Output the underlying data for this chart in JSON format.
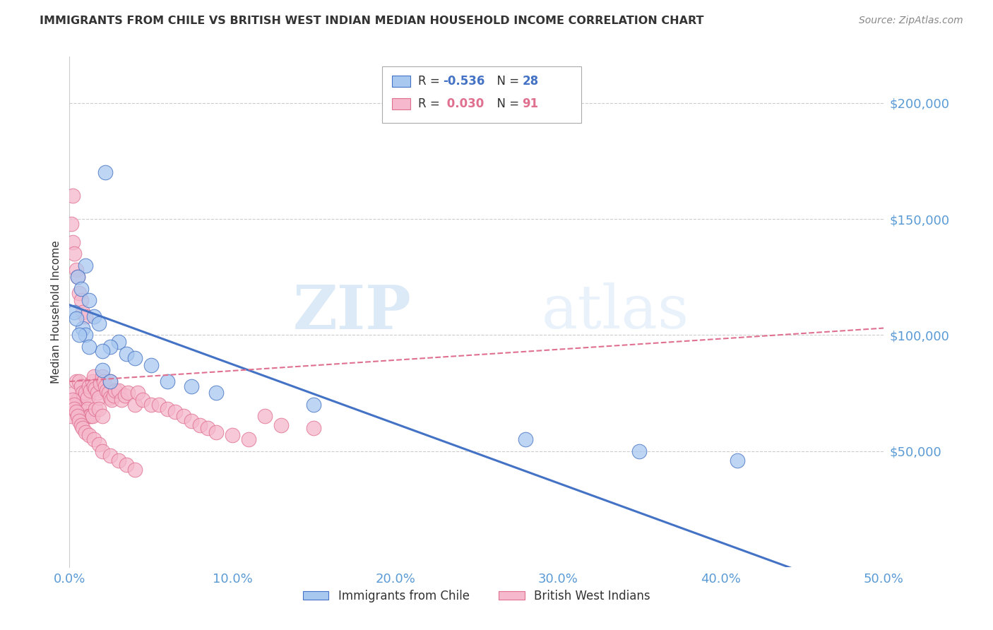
{
  "title": "IMMIGRANTS FROM CHILE VS BRITISH WEST INDIAN MEDIAN HOUSEHOLD INCOME CORRELATION CHART",
  "source": "Source: ZipAtlas.com",
  "ylabel": "Median Household Income",
  "xlabel_ticks": [
    "0.0%",
    "10.0%",
    "20.0%",
    "30.0%",
    "40.0%",
    "50.0%"
  ],
  "xlabel_vals": [
    0.0,
    0.1,
    0.2,
    0.3,
    0.4,
    0.5
  ],
  "ylim": [
    0,
    220000
  ],
  "xlim": [
    0.0,
    0.5
  ],
  "ytick_vals": [
    50000,
    100000,
    150000,
    200000
  ],
  "ytick_labels": [
    "$50,000",
    "$100,000",
    "$150,000",
    "$200,000"
  ],
  "watermark_zip": "ZIP",
  "watermark_atlas": "atlas",
  "legend_chile_R": "-0.536",
  "legend_chile_N": "28",
  "legend_bwi_R": "0.030",
  "legend_bwi_N": "91",
  "chile_fill_color": "#a8c8f0",
  "bwi_fill_color": "#f5b8cc",
  "chile_edge_color": "#4472c4",
  "bwi_edge_color": "#e07090",
  "chile_line_color": "#4472c4",
  "bwi_line_color": "#e07090",
  "grid_color": "#cccccc",
  "title_color": "#333333",
  "axis_label_color": "#5b9bd5",
  "ylabel_color": "#333333",
  "chile_scatter_x": [
    0.022,
    0.01,
    0.005,
    0.007,
    0.012,
    0.015,
    0.018,
    0.008,
    0.01,
    0.03,
    0.025,
    0.02,
    0.035,
    0.04,
    0.05,
    0.06,
    0.075,
    0.09,
    0.15,
    0.28,
    0.35,
    0.003,
    0.004,
    0.006,
    0.012,
    0.02,
    0.025,
    0.41
  ],
  "chile_scatter_y": [
    170000,
    130000,
    125000,
    120000,
    115000,
    108000,
    105000,
    103000,
    100000,
    97000,
    95000,
    93000,
    92000,
    90000,
    87000,
    80000,
    78000,
    75000,
    70000,
    55000,
    50000,
    110000,
    107000,
    100000,
    95000,
    85000,
    80000,
    46000
  ],
  "bwi_scatter_x": [
    0.001,
    0.002,
    0.002,
    0.003,
    0.003,
    0.004,
    0.004,
    0.004,
    0.005,
    0.005,
    0.005,
    0.006,
    0.006,
    0.006,
    0.007,
    0.007,
    0.007,
    0.008,
    0.008,
    0.008,
    0.009,
    0.009,
    0.01,
    0.01,
    0.01,
    0.011,
    0.011,
    0.012,
    0.012,
    0.013,
    0.013,
    0.014,
    0.014,
    0.015,
    0.015,
    0.016,
    0.016,
    0.017,
    0.018,
    0.018,
    0.019,
    0.02,
    0.02,
    0.021,
    0.022,
    0.023,
    0.024,
    0.025,
    0.025,
    0.026,
    0.027,
    0.028,
    0.03,
    0.032,
    0.034,
    0.036,
    0.04,
    0.042,
    0.045,
    0.05,
    0.055,
    0.06,
    0.065,
    0.07,
    0.075,
    0.08,
    0.085,
    0.09,
    0.1,
    0.11,
    0.12,
    0.13,
    0.001,
    0.002,
    0.003,
    0.003,
    0.004,
    0.005,
    0.006,
    0.007,
    0.008,
    0.01,
    0.012,
    0.015,
    0.018,
    0.02,
    0.025,
    0.03,
    0.035,
    0.04,
    0.15
  ],
  "bwi_scatter_y": [
    148000,
    140000,
    160000,
    75000,
    135000,
    70000,
    128000,
    80000,
    125000,
    72000,
    65000,
    118000,
    80000,
    68000,
    115000,
    78000,
    65000,
    110000,
    75000,
    65000,
    73000,
    68000,
    108000,
    75000,
    65000,
    73000,
    68000,
    78000,
    65000,
    76000,
    65000,
    80000,
    65000,
    82000,
    78000,
    77000,
    68000,
    75000,
    73000,
    68000,
    79000,
    82000,
    65000,
    80000,
    78000,
    76000,
    75000,
    73000,
    80000,
    72000,
    74000,
    76000,
    76000,
    72000,
    74000,
    75000,
    70000,
    75000,
    72000,
    70000,
    70000,
    68000,
    67000,
    65000,
    63000,
    61000,
    60000,
    58000,
    57000,
    55000,
    65000,
    61000,
    65000,
    72000,
    70000,
    68000,
    67000,
    65000,
    63000,
    61000,
    60000,
    58000,
    57000,
    55000,
    53000,
    50000,
    48000,
    46000,
    44000,
    42000,
    60000
  ]
}
